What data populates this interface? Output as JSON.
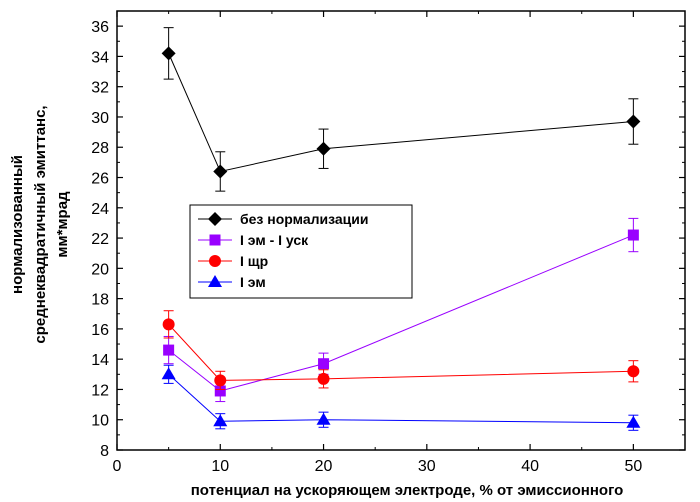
{
  "chart_data": {
    "type": "scatter",
    "xlabel": "потенциал на ускоряющем электроде, % от эмиссионного",
    "ylabel_lines": [
      "нормализованный",
      "среднеквадратичный эмиттанс,",
      "мм*мрад"
    ],
    "xlim": [
      0,
      55
    ],
    "ylim": [
      8,
      37
    ],
    "xticks": [
      0,
      10,
      20,
      30,
      40,
      50
    ],
    "yticks": [
      8,
      10,
      12,
      14,
      16,
      18,
      20,
      22,
      24,
      26,
      28,
      30,
      32,
      34,
      36
    ],
    "grid": false,
    "legend_position": "middle-left",
    "series": [
      {
        "name": "без нормализации",
        "color": "#000000",
        "marker": "diamond",
        "x": [
          5,
          10,
          20,
          50
        ],
        "y": [
          34.2,
          26.4,
          27.9,
          29.7
        ],
        "yerr": [
          1.7,
          1.3,
          1.3,
          1.5
        ]
      },
      {
        "name": "I эм - I уск",
        "color": "#9900ff",
        "marker": "square",
        "x": [
          5,
          10,
          20,
          50
        ],
        "y": [
          14.6,
          11.9,
          13.7,
          22.2
        ],
        "yerr": [
          0.9,
          0.7,
          0.7,
          1.1
        ]
      },
      {
        "name": "I щр",
        "color": "#ff0000",
        "marker": "circle",
        "x": [
          5,
          10,
          20,
          50
        ],
        "y": [
          16.3,
          12.6,
          12.7,
          13.2
        ],
        "yerr": [
          0.9,
          0.6,
          0.6,
          0.7
        ]
      },
      {
        "name": "I эм",
        "color": "#0000ff",
        "marker": "triangle",
        "x": [
          5,
          10,
          20,
          50
        ],
        "y": [
          13.0,
          9.9,
          10.0,
          9.8
        ],
        "yerr": [
          0.6,
          0.5,
          0.5,
          0.5
        ]
      }
    ]
  }
}
